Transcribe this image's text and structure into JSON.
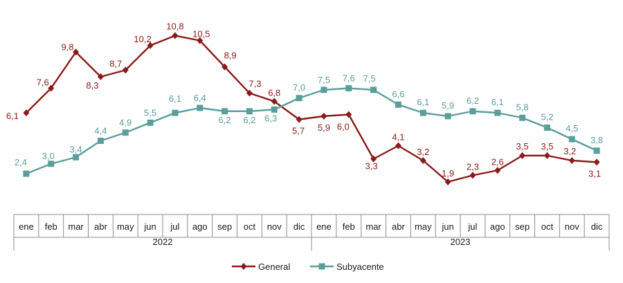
{
  "chart_data": {
    "type": "line",
    "categories": [
      "ene",
      "feb",
      "mar",
      "abr",
      "may",
      "jun",
      "jul",
      "ago",
      "sep",
      "oct",
      "nov",
      "dic",
      "ene",
      "feb",
      "mar",
      "abr",
      "may",
      "jun",
      "jul",
      "ago",
      "sep",
      "oct",
      "nov",
      "dic"
    ],
    "years": [
      {
        "label": "2022",
        "start": 0,
        "end": 11
      },
      {
        "label": "2023",
        "start": 12,
        "end": 23
      }
    ],
    "series": [
      {
        "name": "General",
        "color": "#8B1A1A",
        "marker": "diamond",
        "values": [
          6.1,
          7.6,
          9.8,
          8.3,
          8.7,
          10.2,
          10.8,
          10.5,
          8.9,
          7.3,
          6.8,
          5.7,
          5.9,
          6.0,
          3.3,
          4.1,
          3.2,
          1.9,
          2.3,
          2.6,
          3.5,
          3.5,
          3.2,
          3.1
        ],
        "labels": [
          "6,1",
          "7,6",
          "9,8",
          "8,3",
          "8,7",
          "10,2",
          "10,8",
          "10,5",
          "8,9",
          "7,3",
          "6,8",
          "5,7",
          "5,9",
          "6,0",
          "3,3",
          "4,1",
          "3,2",
          "1,9",
          "2,3",
          "2,6",
          "3,5",
          "3,5",
          "3,2",
          "3,1"
        ]
      },
      {
        "name": "Subyacente",
        "color": "#5A9E9A",
        "marker": "square",
        "values": [
          2.4,
          3.0,
          3.4,
          4.4,
          4.9,
          5.5,
          6.1,
          6.4,
          6.2,
          6.2,
          6.3,
          7.0,
          7.5,
          7.6,
          7.5,
          6.6,
          6.1,
          5.9,
          6.2,
          6.1,
          5.8,
          5.2,
          4.5,
          3.8
        ],
        "labels": [
          "2,4",
          "3,0",
          "3,4",
          "4,4",
          "4,9",
          "5,5",
          "6,1",
          "6,4",
          "6,2",
          "6,2",
          "6,3",
          "7,0",
          "7,5",
          "7,6",
          "7,5",
          "6,6",
          "6,1",
          "5,9",
          "6,2",
          "6,1",
          "5,8",
          "5,2",
          "4,5",
          "3,8"
        ]
      }
    ],
    "grid": false,
    "legend_position": "bottom"
  }
}
